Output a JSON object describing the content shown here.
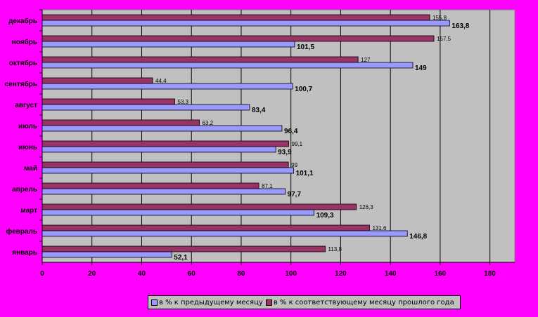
{
  "colors": {
    "background": "#ff00ff",
    "plot_area": "#c0c0c0",
    "series_prev_month": "#9999ff",
    "series_prev_year": "#993366"
  },
  "chart_data": {
    "type": "bar",
    "orientation": "horizontal",
    "categories": [
      "январь",
      "февраль",
      "март",
      "апрель",
      "май",
      "июнь",
      "июль",
      "август",
      "сентябрь",
      "октябрь",
      "ноябрь",
      "декабрь"
    ],
    "series": [
      {
        "name": "в % к предыдущему месяцу",
        "values": [
          52.1,
          146.8,
          109.3,
          97.7,
          101.1,
          93.9,
          96.4,
          83.4,
          100.7,
          149,
          101.5,
          163.8
        ]
      },
      {
        "name": "в % к соответствующему месяцу прошлого года",
        "values": [
          113.8,
          131.6,
          126.3,
          87.1,
          99,
          99.1,
          63.2,
          53.3,
          44.4,
          127,
          157.5,
          155.8
        ]
      }
    ],
    "xlim": [
      0,
      190
    ],
    "xticks": [
      0,
      20,
      40,
      60,
      80,
      100,
      120,
      140,
      160,
      180
    ],
    "grid": "vertical",
    "legend_position": "bottom"
  }
}
